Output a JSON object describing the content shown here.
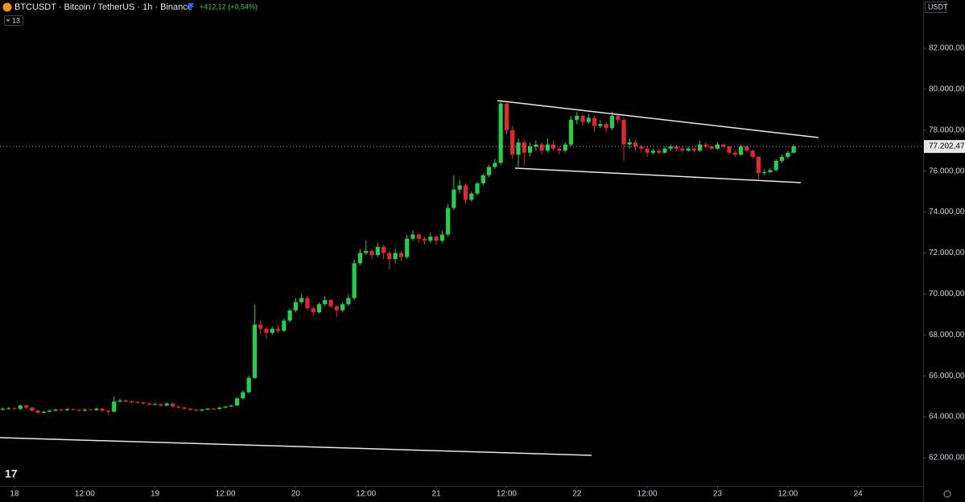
{
  "chart_data": {
    "type": "candlestick",
    "title": "BTCUSDT · Bitcoin / TetherUS · 1h · Binance",
    "change_label": "+412,12 (+0,54%)",
    "indicators_label": "13",
    "currency_label": "USDT",
    "last_price_label": "77.202,47",
    "up_color": "#22d14a",
    "down_color": "#e3262f",
    "xlim": [
      -2.47,
      155.1
    ],
    "xticks": [
      {
        "value": 0,
        "label": "18"
      },
      {
        "value": 12,
        "label": "12:00"
      },
      {
        "value": 24,
        "label": "19"
      },
      {
        "value": 36,
        "label": "12:00"
      },
      {
        "value": 48,
        "label": "20"
      },
      {
        "value": 60,
        "label": "12:00"
      },
      {
        "value": 72,
        "label": "21"
      },
      {
        "value": 84,
        "label": "12:00"
      },
      {
        "value": 96,
        "label": "22"
      },
      {
        "value": 108,
        "label": "12:00"
      },
      {
        "value": 120,
        "label": "23"
      },
      {
        "value": 132,
        "label": "12:00"
      },
      {
        "value": 144,
        "label": "24"
      }
    ],
    "ylim": [
      60625,
      84357
    ],
    "yticks": [
      {
        "value": 62000,
        "label": "62.000,00"
      },
      {
        "value": 64000,
        "label": "64.000,00"
      },
      {
        "value": 66000,
        "label": "66.000,00"
      },
      {
        "value": 68000,
        "label": "68.000,00"
      },
      {
        "value": 70000,
        "label": "70.000,00"
      },
      {
        "value": 72000,
        "label": "72.000,00"
      },
      {
        "value": 74000,
        "label": "74.000,00"
      },
      {
        "value": 76000,
        "label": "76.000,00"
      },
      {
        "value": 78000,
        "label": "78.000,00"
      },
      {
        "value": 80000,
        "label": "80.000,00"
      },
      {
        "value": 82000,
        "label": "82.000,00"
      }
    ],
    "x": [
      -2,
      -1,
      0,
      1,
      2,
      3,
      4,
      5,
      6,
      7,
      8,
      9,
      10,
      11,
      12,
      13,
      14,
      15,
      16,
      17,
      18,
      19,
      20,
      21,
      22,
      23,
      24,
      25,
      26,
      27,
      28,
      29,
      30,
      31,
      32,
      33,
      34,
      35,
      36,
      37,
      38,
      39,
      40,
      41,
      42,
      43,
      44,
      45,
      46,
      47,
      48,
      49,
      50,
      51,
      52,
      53,
      54,
      55,
      56,
      57,
      58,
      59,
      60,
      61,
      62,
      63,
      64,
      65,
      66,
      67,
      68,
      69,
      70,
      71,
      72,
      73,
      74,
      75,
      76,
      77,
      78,
      79,
      80,
      81,
      82,
      83,
      84,
      85,
      86,
      87,
      88,
      89,
      90,
      91,
      92,
      93,
      94,
      95,
      96,
      97,
      98,
      99,
      100,
      101,
      102,
      103,
      104,
      105,
      106,
      107,
      108,
      109,
      110,
      111,
      112,
      113,
      114,
      115,
      116,
      117,
      118,
      119,
      120,
      121,
      122,
      123,
      124,
      125,
      126,
      127,
      128,
      129,
      130,
      131,
      132,
      133
    ],
    "ohlc": [
      [
        64350,
        64450,
        64300,
        64400
      ],
      [
        64400,
        64480,
        64350,
        64420
      ],
      [
        64420,
        64450,
        64330,
        64380
      ],
      [
        64380,
        64600,
        64350,
        64550
      ],
      [
        64550,
        64580,
        64400,
        64450
      ],
      [
        64450,
        64480,
        64250,
        64300
      ],
      [
        64300,
        64330,
        64150,
        64200
      ],
      [
        64200,
        64300,
        64170,
        64250
      ],
      [
        64250,
        64350,
        64220,
        64300
      ],
      [
        64300,
        64400,
        64270,
        64350
      ],
      [
        64350,
        64380,
        64280,
        64320
      ],
      [
        64320,
        64420,
        64300,
        64380
      ],
      [
        64380,
        64400,
        64300,
        64340
      ],
      [
        64340,
        64370,
        64260,
        64300
      ],
      [
        64300,
        64400,
        64280,
        64350
      ],
      [
        64350,
        64380,
        64300,
        64330
      ],
      [
        64330,
        64450,
        64300,
        64400
      ],
      [
        64400,
        64430,
        64250,
        64300
      ],
      [
        64300,
        64330,
        64100,
        64250
      ],
      [
        64250,
        65000,
        64200,
        64750
      ],
      [
        64750,
        64900,
        64700,
        64800
      ],
      [
        64800,
        64850,
        64700,
        64750
      ],
      [
        64750,
        64800,
        64680,
        64720
      ],
      [
        64720,
        64760,
        64650,
        64700
      ],
      [
        64700,
        64740,
        64600,
        64650
      ],
      [
        64650,
        64700,
        64550,
        64600
      ],
      [
        64600,
        64680,
        64580,
        64620
      ],
      [
        64620,
        64650,
        64500,
        64550
      ],
      [
        64550,
        64700,
        64520,
        64650
      ],
      [
        64650,
        64680,
        64450,
        64500
      ],
      [
        64500,
        64530,
        64400,
        64450
      ],
      [
        64450,
        64480,
        64350,
        64400
      ],
      [
        64400,
        64430,
        64300,
        64350
      ],
      [
        64350,
        64380,
        64250,
        64300
      ],
      [
        64300,
        64400,
        64280,
        64350
      ],
      [
        64350,
        64430,
        64320,
        64400
      ],
      [
        64400,
        64430,
        64350,
        64380
      ],
      [
        64380,
        64480,
        64360,
        64450
      ],
      [
        64450,
        64530,
        64420,
        64500
      ],
      [
        64500,
        64580,
        64480,
        64550
      ],
      [
        64550,
        64950,
        64530,
        64900
      ],
      [
        64900,
        65300,
        64850,
        65200
      ],
      [
        65200,
        66000,
        65150,
        65900
      ],
      [
        65900,
        69500,
        65850,
        68500
      ],
      [
        68500,
        68700,
        68000,
        68300
      ],
      [
        68300,
        68400,
        67800,
        68100
      ],
      [
        68100,
        68400,
        68000,
        68300
      ],
      [
        68300,
        68500,
        68100,
        68200
      ],
      [
        68200,
        68800,
        68150,
        68700
      ],
      [
        68700,
        69300,
        68600,
        69200
      ],
      [
        69200,
        69800,
        69100,
        69600
      ],
      [
        69600,
        70000,
        69500,
        69800
      ],
      [
        69800,
        69900,
        69200,
        69300
      ],
      [
        69300,
        69400,
        68900,
        69100
      ],
      [
        69100,
        69600,
        69050,
        69500
      ],
      [
        69500,
        69900,
        69400,
        69700
      ],
      [
        69700,
        69750,
        69300,
        69400
      ],
      [
        69400,
        69450,
        68900,
        69200
      ],
      [
        69200,
        69600,
        69100,
        69500
      ],
      [
        69500,
        70000,
        69400,
        69800
      ],
      [
        69800,
        71700,
        69700,
        71500
      ],
      [
        71500,
        72200,
        71400,
        72000
      ],
      [
        72000,
        72600,
        71900,
        72100
      ],
      [
        72100,
        72200,
        71700,
        71900
      ],
      [
        71900,
        72500,
        71800,
        72300
      ],
      [
        72300,
        72400,
        71700,
        72000
      ],
      [
        72000,
        72100,
        71200,
        71700
      ],
      [
        71700,
        72200,
        71500,
        72000
      ],
      [
        72000,
        72100,
        71600,
        71800
      ],
      [
        71800,
        72900,
        71700,
        72700
      ],
      [
        72700,
        73100,
        72600,
        72900
      ],
      [
        72900,
        73000,
        72500,
        72700
      ],
      [
        72700,
        72800,
        72400,
        72600
      ],
      [
        72600,
        73000,
        72500,
        72800
      ],
      [
        72800,
        72900,
        72400,
        72600
      ],
      [
        72600,
        73100,
        72500,
        72900
      ],
      [
        72900,
        74400,
        72800,
        74200
      ],
      [
        74200,
        75800,
        74100,
        75100
      ],
      [
        75100,
        75600,
        74900,
        75300
      ],
      [
        75300,
        75400,
        74400,
        74600
      ],
      [
        74600,
        75000,
        74500,
        74900
      ],
      [
        74900,
        75500,
        74800,
        75400
      ],
      [
        75400,
        75900,
        75300,
        75800
      ],
      [
        75800,
        76300,
        75700,
        76200
      ],
      [
        76200,
        76600,
        76100,
        76400
      ],
      [
        76400,
        79400,
        76300,
        79300
      ],
      [
        79300,
        79350,
        77800,
        78000
      ],
      [
        78000,
        78200,
        76600,
        76800
      ],
      [
        76800,
        77600,
        76200,
        77400
      ],
      [
        77400,
        77500,
        76300,
        76900
      ],
      [
        76900,
        77400,
        76700,
        77200
      ],
      [
        77200,
        77500,
        77000,
        77300
      ],
      [
        77300,
        77400,
        76800,
        77000
      ],
      [
        77000,
        77600,
        76900,
        77300
      ],
      [
        77300,
        77500,
        77000,
        77100
      ],
      [
        77100,
        77200,
        76800,
        77000
      ],
      [
        77000,
        77400,
        76900,
        77300
      ],
      [
        77300,
        78700,
        77200,
        78500
      ],
      [
        78500,
        78900,
        78300,
        78700
      ],
      [
        78700,
        78800,
        78200,
        78400
      ],
      [
        78400,
        78800,
        78300,
        78600
      ],
      [
        78600,
        78700,
        77900,
        78200
      ],
      [
        78200,
        78500,
        78100,
        78300
      ],
      [
        78300,
        78400,
        77900,
        78100
      ],
      [
        78100,
        78900,
        78000,
        78700
      ],
      [
        78700,
        78800,
        78300,
        78500
      ],
      [
        78500,
        78600,
        76500,
        77300
      ],
      [
        77300,
        77600,
        77100,
        77400
      ],
      [
        77400,
        77500,
        77000,
        77200
      ],
      [
        77200,
        77300,
        76900,
        77100
      ],
      [
        77100,
        77200,
        76700,
        76900
      ],
      [
        76900,
        77100,
        76800,
        77000
      ],
      [
        77000,
        77100,
        76800,
        76900
      ],
      [
        76900,
        77200,
        76850,
        77100
      ],
      [
        77100,
        77300,
        77000,
        77200
      ],
      [
        77200,
        77300,
        77000,
        77100
      ],
      [
        77100,
        77200,
        76900,
        77000
      ],
      [
        77000,
        77200,
        76950,
        77100
      ],
      [
        77100,
        77150,
        76900,
        77000
      ],
      [
        77000,
        77500,
        76950,
        77300
      ],
      [
        77300,
        77400,
        77100,
        77200
      ],
      [
        77200,
        77250,
        77000,
        77100
      ],
      [
        77100,
        77400,
        77050,
        77300
      ],
      [
        77300,
        77350,
        77100,
        77200
      ],
      [
        77200,
        77250,
        76800,
        76900
      ],
      [
        76900,
        77000,
        76700,
        76800
      ],
      [
        76800,
        77300,
        76750,
        77200
      ],
      [
        77200,
        77250,
        76900,
        77000
      ],
      [
        77000,
        77050,
        76600,
        76700
      ],
      [
        76700,
        76750,
        75600,
        75900
      ],
      [
        75900,
        76100,
        75800,
        75950
      ],
      [
        75950,
        76150,
        75900,
        76050
      ],
      [
        76050,
        76600,
        76000,
        76500
      ],
      [
        76500,
        76800,
        76400,
        76700
      ],
      [
        76700,
        77000,
        76600,
        76900
      ],
      [
        76900,
        77300,
        76850,
        77202.47
      ]
    ]
  }
}
